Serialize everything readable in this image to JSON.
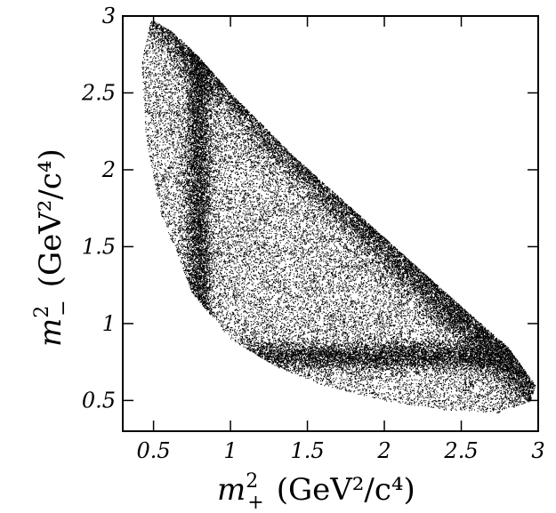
{
  "chart_data": {
    "type": "scatter",
    "title": "",
    "xlabel": {
      "var": "m",
      "sup": "2",
      "sub": "+",
      "units": "(GeV²/c⁴)"
    },
    "ylabel": {
      "var": "m",
      "sup": "2",
      "sub": "−",
      "units": "(GeV²/c⁴)"
    },
    "xlim": [
      0.3,
      3.0
    ],
    "ylim": [
      0.3,
      3.0
    ],
    "x_ticks": [
      0.5,
      1,
      1.5,
      2,
      2.5,
      3
    ],
    "y_ticks": [
      0.5,
      1,
      1.5,
      2,
      2.5,
      3
    ],
    "x_tick_labels": [
      "0.5",
      "1",
      "1.5",
      "2",
      "2.5",
      "3"
    ],
    "y_tick_labels": [
      "0.5",
      "1",
      "1.5",
      "2",
      "2.5",
      "3"
    ],
    "grid": false,
    "legend": "none",
    "point_color": "#000000",
    "point_count": 40000,
    "kinematic_boundary": {
      "x": [
        0.48,
        0.42,
        0.45,
        0.55,
        0.75,
        1.0,
        1.3,
        1.6,
        2.0,
        2.4,
        2.75,
        2.95,
        2.98,
        2.8,
        2.4,
        1.9,
        1.4,
        1.0,
        0.78,
        0.62,
        0.5,
        0.48
      ],
      "y": [
        2.97,
        2.7,
        2.2,
        1.7,
        1.2,
        0.9,
        0.72,
        0.6,
        0.5,
        0.44,
        0.42,
        0.5,
        0.6,
        0.85,
        1.2,
        1.65,
        2.1,
        2.5,
        2.75,
        2.9,
        2.97,
        2.97
      ]
    },
    "density_bands": [
      {
        "orientation": "vertical",
        "axis": "x",
        "center": 0.79,
        "width": 0.05
      },
      {
        "orientation": "horizontal",
        "axis": "y",
        "center": 0.79,
        "width": 0.05
      },
      {
        "orientation": "anti-diagonal",
        "sum": 3.55,
        "width": 0.08
      }
    ]
  }
}
